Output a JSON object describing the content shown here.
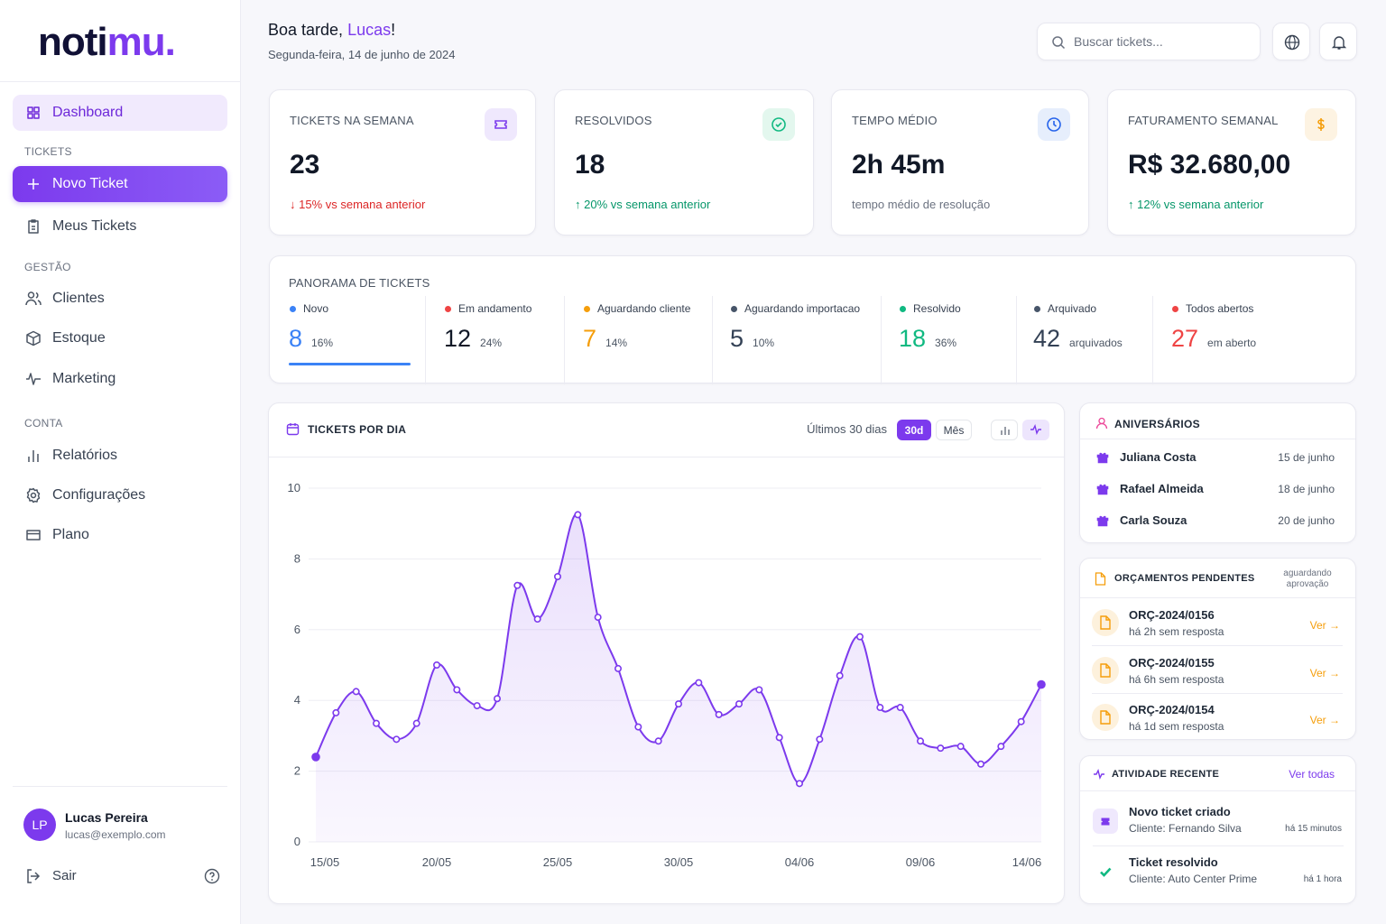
{
  "brand": {
    "part1": "noti",
    "part2": "mu."
  },
  "sidebar": {
    "groups": [
      {
        "items": [
          "Dashboard"
        ]
      },
      {
        "title": "TICKETS",
        "items": [
          "Novo Ticket",
          "Meus Tickets"
        ]
      },
      {
        "title": "GESTÃO",
        "items": [
          "Clientes",
          "Estoque",
          "Marketing"
        ]
      },
      {
        "title": "CONTA",
        "items": [
          "Relatórios",
          "Configurações",
          "Plano"
        ]
      }
    ],
    "user": {
      "initials": "LP",
      "name": "Lucas Pereira",
      "email": "lucas@exemplo.com"
    },
    "logout": "Sair"
  },
  "header": {
    "greeting": "Boa tarde,",
    "name": "Lucas",
    "suffix": "!",
    "date": "Segunda-feira, 14 de junho de 2024",
    "search_placeholder": "Buscar tickets..."
  },
  "kpis": [
    {
      "label": "TICKETS NA SEMANA",
      "value": "23",
      "note": "↓ 15% vs semana anterior"
    },
    {
      "label": "RESOLVIDOS",
      "value": "18",
      "note": "↑ 20% vs semana anterior"
    },
    {
      "label": "TEMPO MÉDIO",
      "value": "2h 45m",
      "note": "tempo médio de resolução"
    },
    {
      "label": "FATURAMENTO SEMANAL",
      "value": "R$ 32.680,00",
      "note": "↑ 12% vs semana anterior"
    }
  ],
  "panorama": {
    "title": "PANORAMA DE TICKETS",
    "items": [
      {
        "label": "Novo",
        "value": "8",
        "sub": "16%"
      },
      {
        "label": "Em andamento",
        "value": "12",
        "sub": "24%"
      },
      {
        "label": "Aguardando cliente",
        "value": "7",
        "sub": "14%"
      },
      {
        "label": "Aguardando importacao",
        "value": "5",
        "sub": "10%"
      },
      {
        "label": "Resolvido",
        "value": "18",
        "sub": "36%"
      },
      {
        "label": "Arquivado",
        "value": "42",
        "sub": "arquivados"
      },
      {
        "label": "Todos abertos",
        "value": "27",
        "sub": "em aberto"
      }
    ]
  },
  "chart_card": {
    "title": "TICKETS POR DIA",
    "range_label": "Últimos 30 dias",
    "buttons": [
      "30d",
      "Mês"
    ]
  },
  "chart_data": {
    "type": "line",
    "categories": [
      "15/05",
      null,
      null,
      null,
      null,
      null,
      "20/05",
      null,
      null,
      null,
      null,
      null,
      "25/05",
      null,
      null,
      null,
      null,
      null,
      "30/05",
      null,
      null,
      null,
      null,
      null,
      "04/06",
      null,
      null,
      null,
      null,
      null,
      "09/06",
      null,
      null,
      null,
      null,
      null,
      "14/06"
    ],
    "series": [
      {
        "name": "Tickets",
        "color": "#7c3aed",
        "values": [
          2.4,
          3.65,
          4.25,
          3.35,
          2.9,
          3.35,
          5.0,
          4.3,
          3.85,
          4.05,
          7.25,
          6.3,
          7.5,
          9.25,
          6.35,
          4.9,
          3.25,
          2.85,
          3.9,
          4.5,
          3.6,
          3.9,
          4.3,
          2.95,
          1.65,
          2.9,
          4.7,
          5.8,
          3.8,
          3.8,
          2.85,
          2.65,
          2.7,
          2.2,
          2.7,
          3.4,
          4.45
        ]
      }
    ],
    "ylim": [
      0,
      10
    ],
    "yticks": [
      0,
      2,
      4,
      6,
      8,
      10
    ],
    "grid": true
  },
  "birthdays": {
    "title": "ANIVERSÁRIOS",
    "items": [
      {
        "name": "Juliana Costa",
        "date": "15 de junho"
      },
      {
        "name": "Rafael Almeida",
        "date": "18 de junho"
      },
      {
        "name": "Carla Souza",
        "date": "20 de junho"
      }
    ]
  },
  "quotes": {
    "title": "ORÇAMENTOS PENDENTES",
    "note": [
      "aguardando",
      "aprovação"
    ],
    "action": "Ver →",
    "items": [
      {
        "id": "ORÇ-2024/0156",
        "sub": "há 2h sem resposta"
      },
      {
        "id": "ORÇ-2024/0155",
        "sub": "há 6h sem resposta"
      },
      {
        "id": "ORÇ-2024/0154",
        "sub": "há 1d sem resposta"
      }
    ]
  },
  "activity": {
    "title": "ATIVIDADE RECENTE",
    "link": "Ver todas",
    "items": [
      {
        "title": "Novo ticket criado",
        "sub": "Cliente: Fernando Silva",
        "time": "há 15 minutos"
      },
      {
        "title": "Ticket resolvido",
        "sub": "Cliente: Auto Center Prime",
        "time": "há 1 hora"
      }
    ]
  }
}
